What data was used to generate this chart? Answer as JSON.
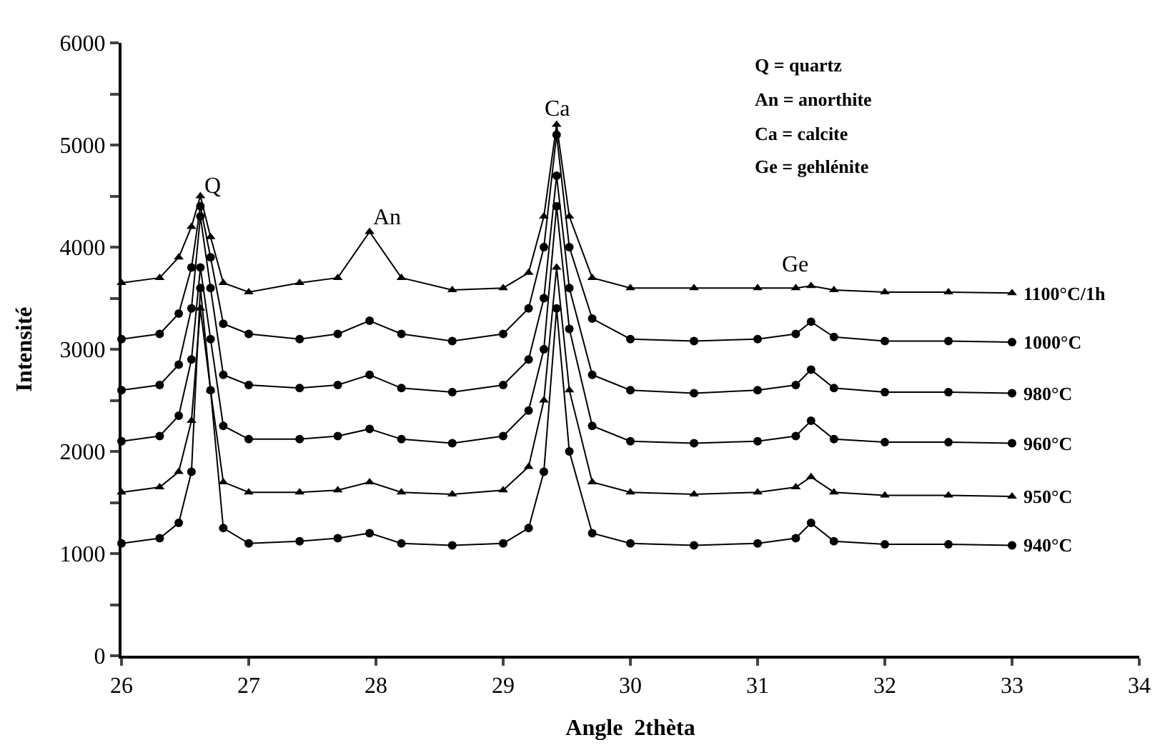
{
  "chart_data": {
    "type": "line",
    "xlabel": "Angle  2thèta",
    "ylabel": "Intensité",
    "x": [
      26,
      26.3,
      26.45,
      26.55,
      26.62,
      26.7,
      26.8,
      27,
      27.4,
      27.7,
      27.95,
      28.2,
      28.6,
      29,
      29.2,
      29.32,
      29.42,
      29.52,
      29.7,
      30,
      30.5,
      31,
      31.3,
      31.42,
      31.6,
      32,
      32.5,
      33
    ],
    "series": [
      {
        "name": "1100°C/1h",
        "color": "#000000",
        "marker": "triangle",
        "values": [
          3650,
          3700,
          3900,
          4200,
          4500,
          4100,
          3650,
          3560,
          3650,
          3700,
          4150,
          3700,
          3580,
          3600,
          3750,
          4300,
          5200,
          4300,
          3700,
          3600,
          3600,
          3600,
          3600,
          3620,
          3580,
          3560,
          3560,
          3550
        ]
      },
      {
        "name": "1000°C",
        "color": "#000000",
        "marker": "circle",
        "values": [
          3100,
          3150,
          3350,
          3800,
          4400,
          3900,
          3250,
          3150,
          3100,
          3150,
          3280,
          3150,
          3080,
          3150,
          3400,
          4000,
          5100,
          4000,
          3300,
          3100,
          3080,
          3100,
          3150,
          3270,
          3120,
          3080,
          3080,
          3070
        ]
      },
      {
        "name": "980°C",
        "color": "#000000",
        "marker": "circle",
        "values": [
          2600,
          2650,
          2850,
          3400,
          4300,
          3600,
          2750,
          2650,
          2620,
          2650,
          2750,
          2620,
          2580,
          2650,
          2900,
          3500,
          4700,
          3600,
          2750,
          2600,
          2570,
          2600,
          2650,
          2800,
          2620,
          2580,
          2580,
          2570
        ]
      },
      {
        "name": "960°C",
        "color": "#000000",
        "marker": "circle",
        "values": [
          2100,
          2150,
          2350,
          2900,
          3800,
          3100,
          2250,
          2120,
          2120,
          2150,
          2220,
          2120,
          2080,
          2150,
          2400,
          3000,
          4400,
          3200,
          2250,
          2100,
          2080,
          2100,
          2150,
          2300,
          2120,
          2090,
          2090,
          2080
        ]
      },
      {
        "name": "950°C",
        "color": "#000000",
        "marker": "triangle",
        "values": [
          1600,
          1650,
          1800,
          2300,
          3400,
          2600,
          1700,
          1600,
          1600,
          1620,
          1700,
          1600,
          1580,
          1620,
          1850,
          2500,
          3800,
          2600,
          1700,
          1600,
          1580,
          1600,
          1650,
          1750,
          1600,
          1570,
          1570,
          1560
        ]
      },
      {
        "name": "940°C",
        "color": "#000000",
        "marker": "circle",
        "values": [
          1100,
          1150,
          1300,
          1800,
          3600,
          2600,
          1250,
          1100,
          1120,
          1150,
          1200,
          1100,
          1080,
          1100,
          1250,
          1800,
          3400,
          2000,
          1200,
          1100,
          1080,
          1100,
          1150,
          1300,
          1120,
          1090,
          1090,
          1080
        ]
      }
    ],
    "xlim": [
      26,
      34
    ],
    "xticks": [
      26,
      27,
      28,
      29,
      30,
      31,
      32,
      33,
      34
    ],
    "ylim": [
      0,
      6000
    ],
    "yticks": [
      0,
      {
        "value": 500,
        "label": null
      },
      1000,
      {
        "value": 1500,
        "label": null
      },
      2000,
      {
        "value": 2500,
        "label": null
      },
      3000,
      {
        "value": 3500,
        "label": null
      },
      4000,
      {
        "value": 4500,
        "label": null
      },
      5000,
      {
        "value": 5500,
        "label": null
      },
      6000
    ],
    "legend": false,
    "line_style": "solid",
    "annotations": [
      "Q",
      "An",
      "Ca",
      "Ge",
      "Q = quartz",
      "An = anorthite",
      "Ca = calcite",
      "Ge = gehlénite"
    ]
  }
}
